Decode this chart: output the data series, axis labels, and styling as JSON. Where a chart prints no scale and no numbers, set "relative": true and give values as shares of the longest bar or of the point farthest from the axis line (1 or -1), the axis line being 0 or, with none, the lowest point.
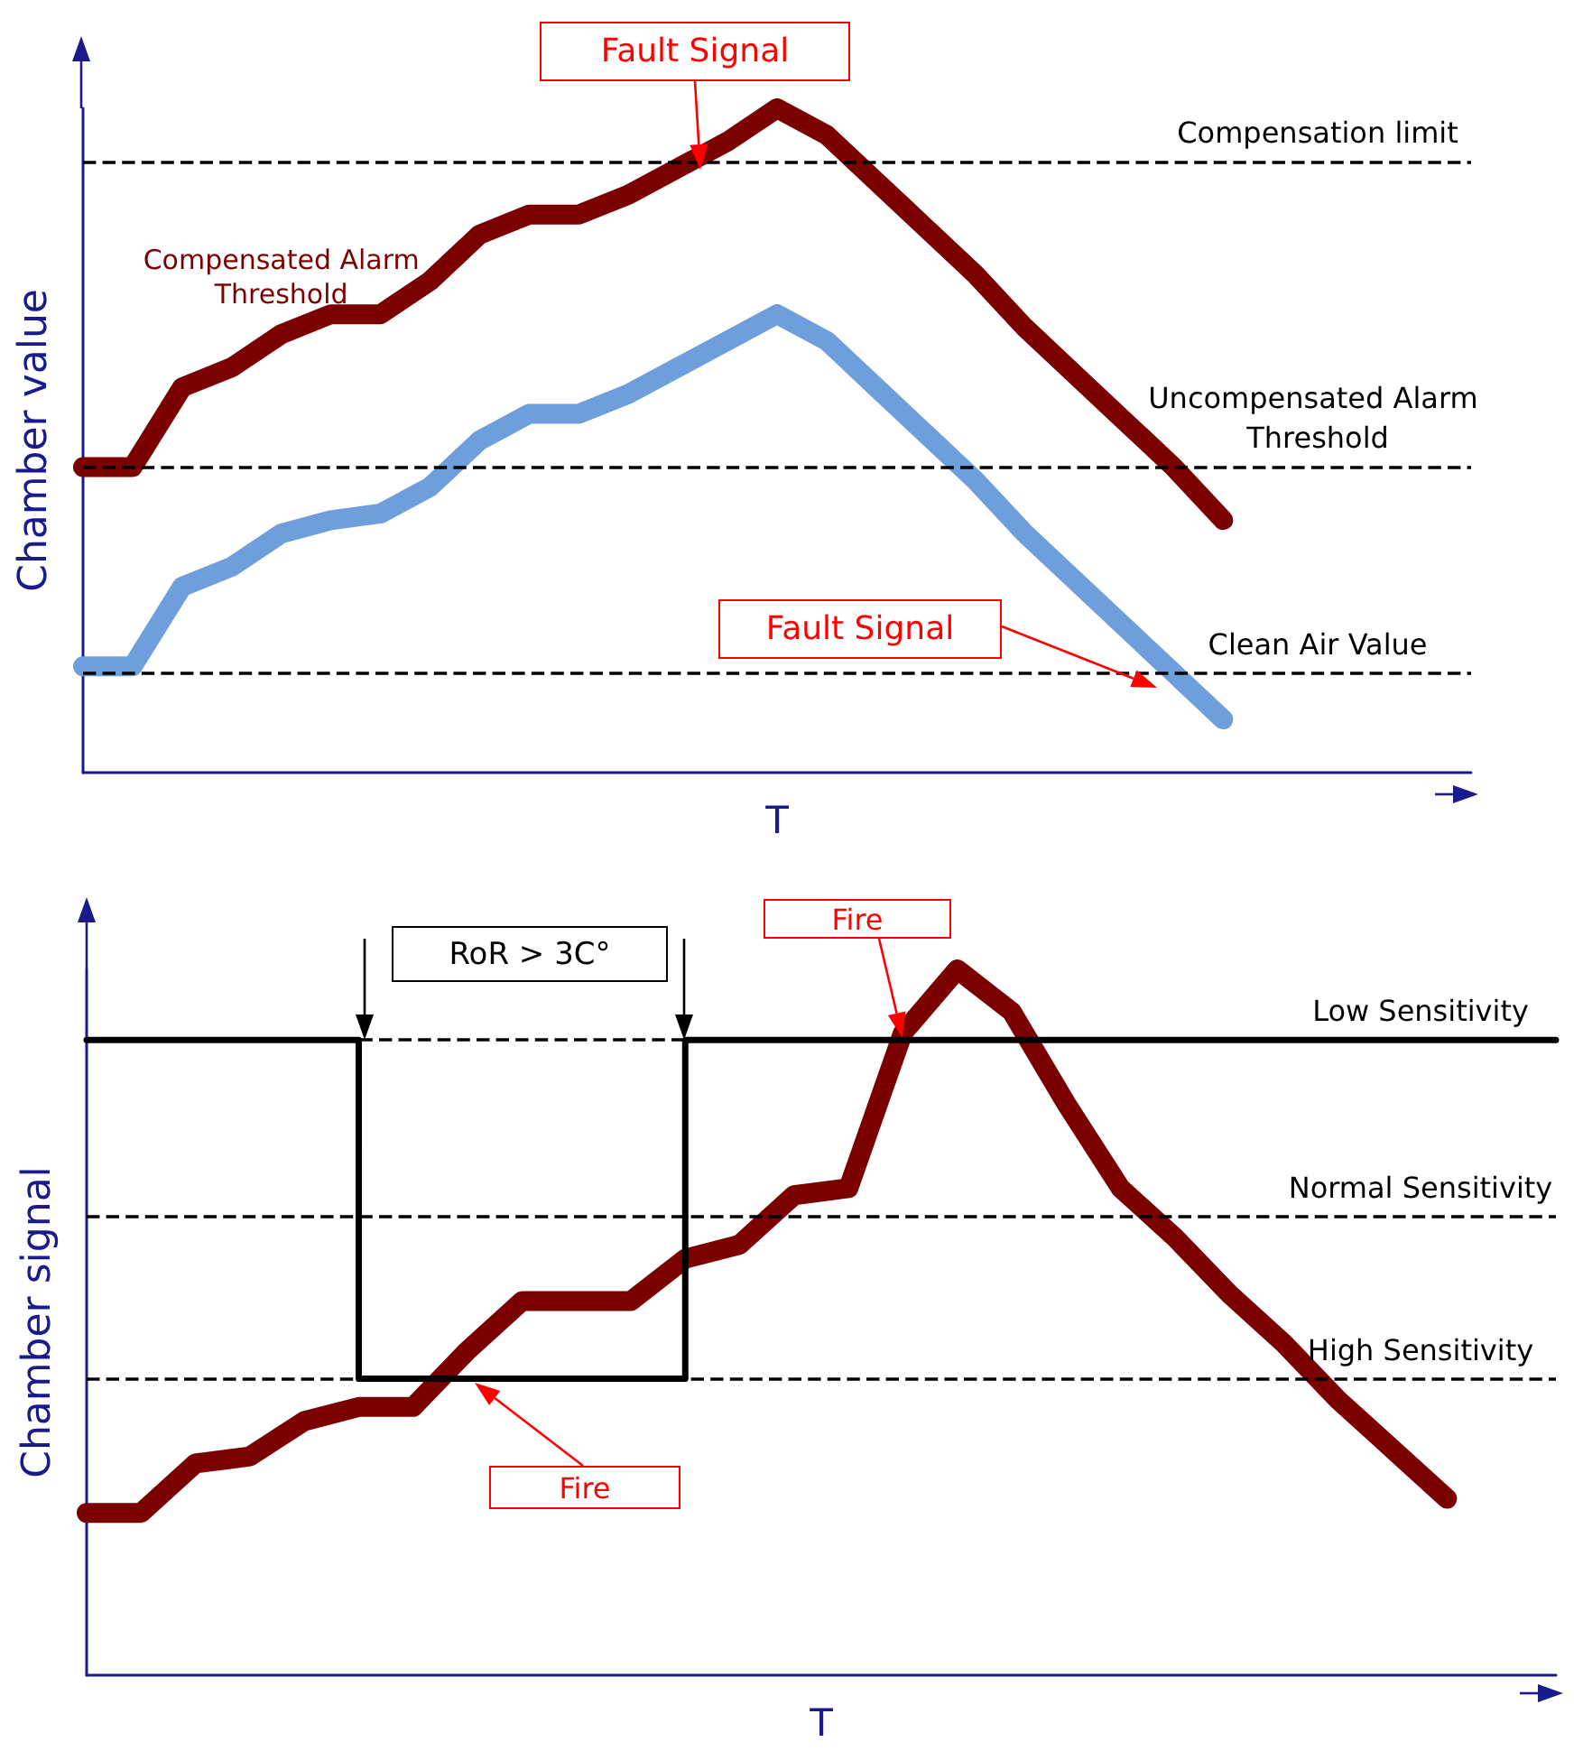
{
  "chart_data": [
    {
      "type": "line",
      "relative": true,
      "xlabel": "T",
      "ylabel": "Chamber value",
      "categories": [
        null,
        null,
        null,
        null,
        null,
        null,
        null,
        null,
        null,
        null,
        null,
        null,
        null,
        null,
        null,
        null,
        null,
        null,
        null,
        null,
        null,
        null,
        null,
        null,
        null,
        null,
        null,
        null,
        null
      ],
      "series": [
        {
          "name": "Compensated Alarm Threshold",
          "color": "#7b0000",
          "values": [
            0.46,
            0.46,
            0.58,
            0.61,
            0.66,
            0.69,
            0.69,
            0.74,
            0.81,
            0.84,
            0.84,
            0.87,
            0.91,
            0.95,
            1,
            0.96,
            0.89,
            0.82,
            0.75,
            0.67,
            0.6,
            0.53,
            0.46,
            0.38,
            null,
            null,
            null,
            null,
            null
          ]
        },
        {
          "color": "#6f9edc",
          "values": [
            0.16,
            0.16,
            0.28,
            0.31,
            0.36,
            0.38,
            0.39,
            0.43,
            0.5,
            0.54,
            0.54,
            0.57,
            0.61,
            0.65,
            0.69,
            0.65,
            0.58,
            0.51,
            0.44,
            0.36,
            0.29,
            0.22,
            0.15,
            0.08,
            null,
            null,
            null,
            null,
            null
          ]
        }
      ],
      "ref_lines": [
        {
          "axis": "y",
          "value": 0.92,
          "label": "Compensation limit",
          "color": "#000000",
          "line_style": "dashed"
        },
        {
          "axis": "y",
          "value": 0.46,
          "label": "Uncompensated Alarm Threshold",
          "color": "#000000",
          "line_style": "dashed"
        },
        {
          "axis": "y",
          "value": 0.15,
          "label": "Clean Air Value",
          "color": "#000000",
          "line_style": "dashed"
        }
      ],
      "annotations": [
        "Fault Signal",
        "Fault Signal"
      ]
    },
    {
      "type": "line",
      "relative": true,
      "xlabel": "T",
      "ylabel": "Chamber signal",
      "categories": [
        null,
        null,
        null,
        null,
        null,
        null,
        null,
        null,
        null,
        null,
        null,
        null,
        null,
        null,
        null,
        null,
        null,
        null,
        null,
        null,
        null,
        null,
        null,
        null,
        null,
        null,
        null,
        null
      ],
      "series": [
        {
          "color": "#7b0000",
          "values": [
            0.23,
            0.23,
            0.3,
            0.31,
            0.36,
            0.38,
            0.38,
            0.46,
            0.53,
            0.53,
            0.53,
            0.59,
            0.61,
            0.68,
            0.69,
            0.91,
            1,
            0.94,
            0.81,
            0.69,
            0.62,
            0.54,
            0.47,
            0.39,
            0.32,
            0.25,
            null,
            null
          ]
        },
        {
          "type": "step",
          "color": "#000000",
          "values": [
            0.9,
            0.9,
            0.9,
            0.9,
            0.9,
            0.42,
            0.42,
            0.42,
            0.42,
            0.42,
            0.42,
            0.9,
            0.9,
            0.9,
            0.9,
            0.9,
            0.9,
            0.9,
            0.9,
            0.9,
            0.9,
            0.9,
            0.9,
            0.9,
            0.9,
            0.9,
            0.9,
            0.9
          ]
        }
      ],
      "ref_lines": [
        {
          "axis": "y",
          "value": 0.9,
          "label": "Low Sensitivity",
          "color": "#000000",
          "line_style": "dashed"
        },
        {
          "axis": "y",
          "value": 0.65,
          "label": "Normal Sensitivity",
          "color": "#000000",
          "line_style": "dashed"
        },
        {
          "axis": "y",
          "value": 0.42,
          "label": "High Sensitivity",
          "color": "#000000",
          "line_style": "dashed"
        }
      ],
      "annotations": [
        "RoR > 3C°",
        "Fire",
        "Fire"
      ]
    }
  ]
}
